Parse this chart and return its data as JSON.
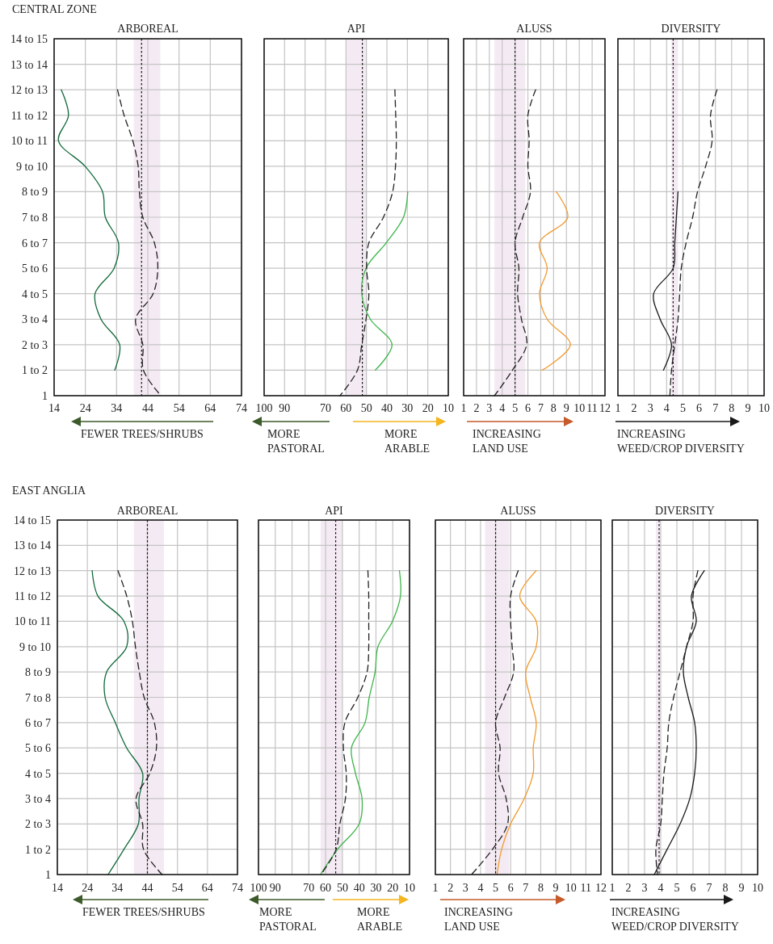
{
  "chart_data": [
    {
      "type": "line",
      "orientation": "horizontal",
      "title": "ARBOREAL",
      "subtitle": "CENTRAL ZONE",
      "xlabel": "FEWER TREES/SHRUBS",
      "xlim": [
        14,
        74
      ],
      "xticks": [
        14,
        24,
        34,
        44,
        54,
        64,
        74
      ],
      "categories": [
        "14 to 15",
        "13 to 14",
        "12 to 13",
        "11 to 12",
        "10 to 11",
        "9 to 10",
        "8 to 9",
        "7 to 8",
        "6 to 7",
        "5 to 6",
        "4 to 5",
        "3 to 4",
        "2 to 3",
        "1 to 2",
        "1"
      ],
      "grid": true,
      "bands": [
        {
          "axis": "x",
          "from": 39.5,
          "to": 48,
          "color": "#f4eaf3"
        }
      ],
      "ref_lines": [
        {
          "axis": "x",
          "value": 42,
          "color": "#111111",
          "line_style": "dotted"
        }
      ],
      "series": [
        {
          "color": "#11693a",
          "line_style": "solid",
          "values": [
            null,
            null,
            16.3,
            18.6,
            15.4,
            23.9,
            29.5,
            30.4,
            34.6,
            33.2,
            27.1,
            29,
            35,
            33.4,
            null
          ]
        },
        {
          "color": "#222222",
          "line_style": "dashed",
          "values": [
            null,
            null,
            34.3,
            36.4,
            39.2,
            40.9,
            41.3,
            42.4,
            46.1,
            47.2,
            45.7,
            40.1,
            42.4,
            42.6,
            48.2
          ]
        }
      ]
    },
    {
      "type": "line",
      "orientation": "horizontal",
      "title": "API",
      "annotations": [
        "MORE\nPASTORAL",
        "MORE\nARABLE"
      ],
      "xlim": [
        100,
        10
      ],
      "xticks": [
        100,
        90,
        {
          "value": 80,
          "label": null
        },
        70,
        60,
        50,
        40,
        30,
        20,
        10
      ],
      "categories": [
        null,
        null,
        null,
        null,
        null,
        null,
        null,
        null,
        null,
        null,
        null,
        null,
        null,
        null,
        null
      ],
      "tick_labels": "x",
      "grid": true,
      "bands": [
        {
          "axis": "x",
          "from": 60,
          "to": 50,
          "color": "#f4eaf3"
        }
      ],
      "ref_lines": [
        {
          "axis": "x",
          "value": 52,
          "color": "#111111",
          "line_style": "dotted"
        }
      ],
      "series": [
        {
          "color": "#3cb54a",
          "line_style": "solid",
          "values": [
            null,
            null,
            null,
            null,
            null,
            null,
            29.8,
            31.9,
            40.3,
            50.2,
            52.3,
            48.1,
            37.5,
            45.7,
            null
          ]
        },
        {
          "color": "#222222",
          "line_style": "dashed",
          "values": [
            null,
            null,
            36.1,
            35.7,
            35.4,
            35.8,
            37.2,
            41.7,
            48.8,
            49.9,
            48.8,
            50.2,
            52.3,
            54.4,
            62.9
          ]
        }
      ]
    },
    {
      "type": "line",
      "orientation": "horizontal",
      "title": "ALUSS",
      "xlabel": "INCREASING\nLAND USE",
      "xlim": [
        1,
        12
      ],
      "xticks": [
        1,
        2,
        3,
        4,
        5,
        6,
        7,
        8,
        9,
        10,
        11,
        12
      ],
      "categories": [
        null,
        null,
        null,
        null,
        null,
        null,
        null,
        null,
        null,
        null,
        null,
        null,
        null,
        null,
        null
      ],
      "tick_labels": "x",
      "grid": true,
      "bands": [
        {
          "axis": "x",
          "from": 3.4,
          "to": 5.8,
          "color": "#f4eaf3"
        }
      ],
      "ref_lines": [
        {
          "axis": "x",
          "value": 5,
          "color": "#111111",
          "line_style": "dotted"
        }
      ],
      "series": [
        {
          "color": "#f29a2e",
          "line_style": "solid",
          "values": [
            null,
            null,
            null,
            null,
            null,
            null,
            8.2,
            9.1,
            6.9,
            7.5,
            6.9,
            7.5,
            9.3,
            7.1,
            null
          ]
        },
        {
          "color": "#222222",
          "line_style": "dashed",
          "values": [
            null,
            null,
            6.6,
            6.0,
            6.1,
            6.0,
            6.2,
            5.6,
            5.0,
            5.3,
            5.2,
            5.5,
            5.9,
            4.8,
            3.4
          ]
        }
      ]
    },
    {
      "type": "line",
      "orientation": "horizontal",
      "title": "DIVERSITY",
      "xlabel": "INCREASING\nWEED/CROP DIVERSITY",
      "xlim": [
        1,
        10
      ],
      "xticks": [
        1,
        2,
        3,
        4,
        5,
        6,
        7,
        8,
        9,
        10
      ],
      "categories": [
        null,
        null,
        null,
        null,
        null,
        null,
        null,
        null,
        null,
        null,
        null,
        null,
        null,
        null,
        null
      ],
      "tick_labels": "x",
      "grid": true,
      "bands": [
        {
          "axis": "x",
          "from": 4.3,
          "to": 4.7,
          "color": "#f4eaf3"
        }
      ],
      "ref_lines": [
        {
          "axis": "x",
          "value": 4.4,
          "color": "#111111",
          "line_style": "dotted"
        }
      ],
      "series": [
        {
          "color": "#1a1a1a",
          "line_style": "solid",
          "values": [
            null,
            null,
            null,
            null,
            null,
            null,
            4.7,
            4.6,
            4.5,
            4.4,
            3.2,
            3.6,
            4.3,
            3.8,
            null
          ]
        },
        {
          "color": "#222222",
          "line_style": "dashed",
          "values": [
            null,
            null,
            7.1,
            6.7,
            6.8,
            6.4,
            5.9,
            5.6,
            5.2,
            4.9,
            4.8,
            4.7,
            4.5,
            4.3,
            4.2
          ]
        }
      ]
    },
    {
      "type": "line",
      "orientation": "horizontal",
      "title": "ARBOREAL",
      "subtitle": "EAST ANGLIA",
      "xlabel": "FEWER TREES/SHRUBS",
      "xlim": [
        14,
        74
      ],
      "xticks": [
        14,
        24,
        34,
        44,
        54,
        64,
        74
      ],
      "categories": [
        "14 to 15",
        "13 to 14",
        "12 to 13",
        "11 to 12",
        "10 to 11",
        "9 to 10",
        "8 to 9",
        "7 to 8",
        "6 to 7",
        "5 to 6",
        "4 to 5",
        "3 to 4",
        "2 to 3",
        "1 to 2",
        "1"
      ],
      "grid": true,
      "bands": [
        {
          "axis": "x",
          "from": 39.5,
          "to": 49.5,
          "color": "#f4eaf3"
        }
      ],
      "ref_lines": [
        {
          "axis": "x",
          "value": 44,
          "color": "#111111",
          "line_style": "dotted"
        }
      ],
      "series": [
        {
          "color": "#11693a",
          "line_style": "solid",
          "values": [
            null,
            null,
            25.6,
            27.5,
            36.2,
            37.1,
            30.4,
            29.9,
            33.3,
            37.1,
            42.4,
            41.2,
            41,
            36.2,
            30.9
          ]
        },
        {
          "color": "#222222",
          "line_style": "dashed",
          "values": [
            null,
            null,
            34.2,
            37.1,
            39,
            40,
            41.3,
            42.9,
            46.3,
            47,
            44.8,
            40.2,
            42.4,
            42.7,
            48.9
          ]
        }
      ]
    },
    {
      "type": "line",
      "orientation": "horizontal",
      "title": "API",
      "annotations": [
        "MORE\nPASTORAL",
        "MORE\nARABLE"
      ],
      "xlim": [
        100,
        10
      ],
      "xticks": [
        100,
        90,
        {
          "value": 80,
          "label": null
        },
        70,
        60,
        50,
        40,
        30,
        20,
        10
      ],
      "categories": [
        null,
        null,
        null,
        null,
        null,
        null,
        null,
        null,
        null,
        null,
        null,
        null,
        null,
        null,
        null
      ],
      "tick_labels": "x",
      "grid": true,
      "bands": [
        {
          "axis": "x",
          "from": 63,
          "to": 50,
          "color": "#f4eaf3"
        }
      ],
      "ref_lines": [
        {
          "axis": "x",
          "value": 54,
          "color": "#111111",
          "line_style": "dotted"
        }
      ],
      "series": [
        {
          "color": "#3cb54a",
          "line_style": "solid",
          "values": [
            null,
            null,
            16,
            15.4,
            20.2,
            28.8,
            30.5,
            34,
            36.5,
            44.6,
            42.2,
            38.3,
            40,
            52.8,
            63.1
          ]
        },
        {
          "color": "#222222",
          "line_style": "dashed",
          "values": [
            null,
            null,
            34.8,
            34.3,
            34.3,
            34.3,
            35.3,
            40.8,
            48.5,
            49.4,
            47.7,
            48.2,
            51.5,
            53.7,
            62.8
          ]
        }
      ]
    },
    {
      "type": "line",
      "orientation": "horizontal",
      "title": "ALUSS",
      "xlabel": "INCREASING\nLAND USE",
      "xlim": [
        1,
        12
      ],
      "xticks": [
        1,
        2,
        3,
        4,
        5,
        6,
        7,
        8,
        9,
        10,
        11,
        12
      ],
      "categories": [
        null,
        null,
        null,
        null,
        null,
        null,
        null,
        null,
        null,
        null,
        null,
        null,
        null,
        null,
        null
      ],
      "tick_labels": "x",
      "grid": true,
      "bands": [
        {
          "axis": "x",
          "from": 4.3,
          "to": 5.9,
          "color": "#f4eaf3"
        }
      ],
      "ref_lines": [
        {
          "axis": "x",
          "value": 5,
          "color": "#111111",
          "line_style": "dotted"
        }
      ],
      "series": [
        {
          "color": "#f29a2e",
          "line_style": "solid",
          "values": [
            null,
            null,
            7.7,
            6.6,
            7.7,
            7.7,
            7.0,
            7.3,
            7.7,
            7.5,
            7.5,
            6.9,
            6.0,
            5.4,
            5.1
          ]
        },
        {
          "color": "#222222",
          "line_style": "dashed",
          "values": [
            null,
            null,
            6.5,
            6.0,
            6.0,
            6.1,
            6.2,
            5.6,
            5.0,
            5.3,
            5.2,
            5.7,
            5.8,
            4.8,
            3.4
          ]
        }
      ]
    },
    {
      "type": "line",
      "orientation": "horizontal",
      "title": "DIVERSITY",
      "xlabel": "INCREASING\nWEED/CROP DIVERSITY",
      "xlim": [
        1,
        10
      ],
      "xticks": [
        1,
        2,
        3,
        4,
        5,
        6,
        7,
        8,
        9,
        10
      ],
      "categories": [
        null,
        null,
        null,
        null,
        null,
        null,
        null,
        null,
        null,
        null,
        null,
        null,
        null,
        null,
        null
      ],
      "tick_labels": "x",
      "grid": true,
      "bands": [
        {
          "axis": "x",
          "from": 3.7,
          "to": 4.0,
          "color": "#f4eaf3"
        }
      ],
      "ref_lines": [
        {
          "axis": "x",
          "value": 3.9,
          "color": "#111111",
          "line_style": "dotted"
        }
      ],
      "series": [
        {
          "color": "#1a1a1a",
          "line_style": "solid",
          "values": [
            null,
            null,
            6.7,
            5.9,
            6.2,
            5.6,
            5.4,
            5.7,
            6.1,
            6.2,
            6.1,
            5.8,
            5.2,
            4.4,
            3.6
          ]
        },
        {
          "color": "#222222",
          "line_style": "dashed",
          "values": [
            null,
            null,
            6.3,
            6.0,
            6.0,
            5.6,
            5.2,
            4.8,
            4.5,
            4.4,
            4.2,
            4.1,
            4.0,
            3.7,
            3.8
          ]
        }
      ]
    }
  ]
}
